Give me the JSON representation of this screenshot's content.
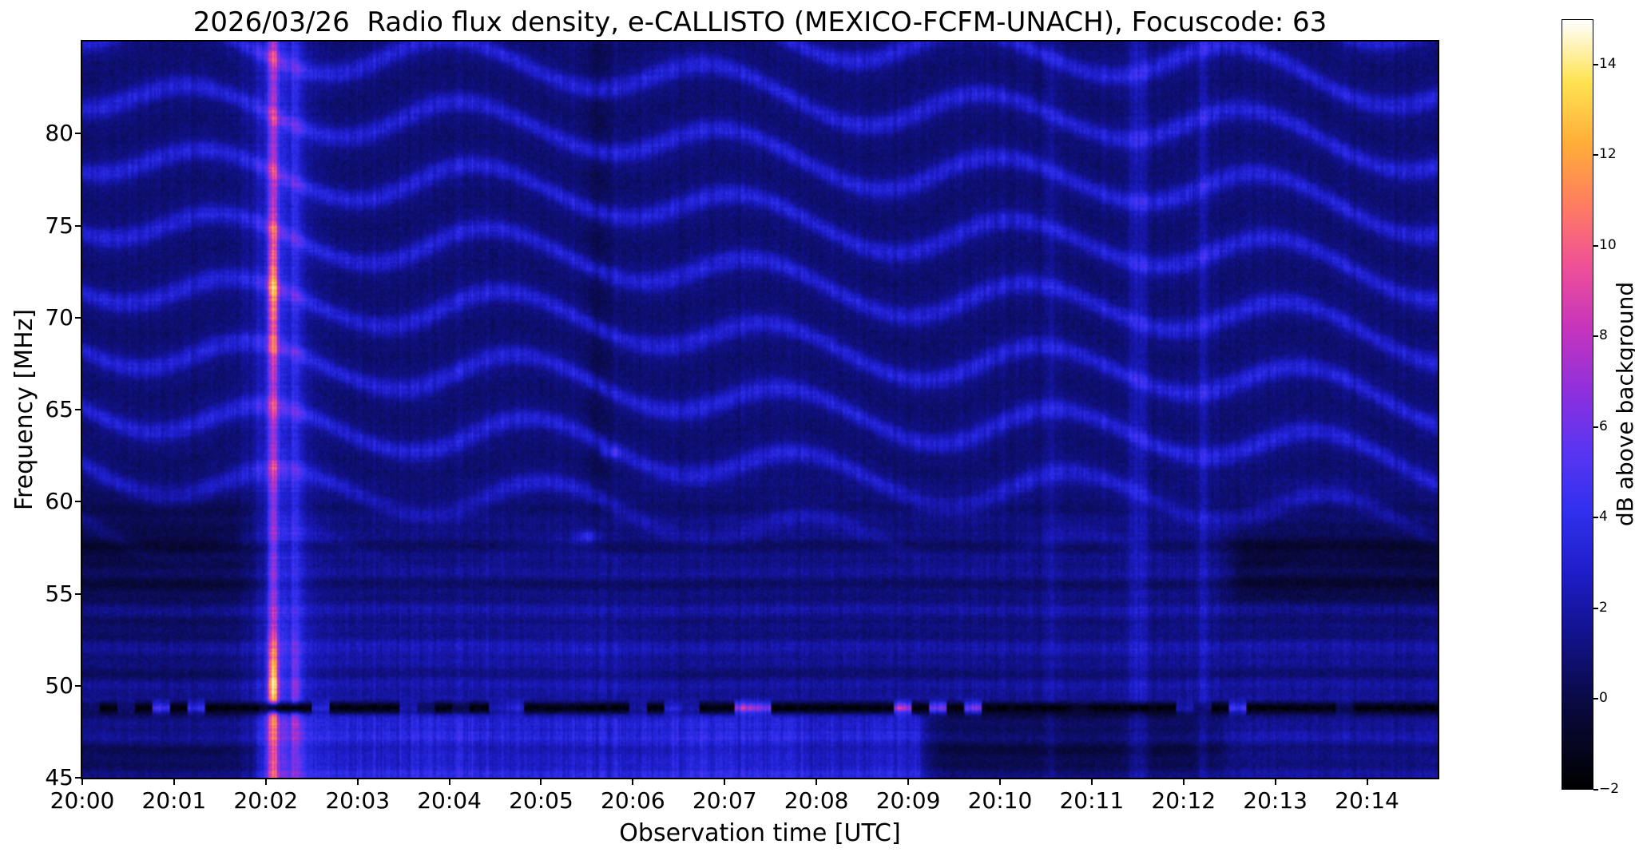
{
  "figure": {
    "title": "2026/03/26  Radio flux density, e-CALLISTO (MEXICO-FCFM-UNACH), Focuscode: 63",
    "xlabel": "Observation time [UTC]",
    "ylabel": "Frequency [MHz]",
    "colorbar_label": "dB above background"
  },
  "chart_data": {
    "type": "heatmap",
    "title": "2026/03/26  Radio flux density, e-CALLISTO (MEXICO-FCFM-UNACH), Focuscode: 63",
    "date": "2026/03/26",
    "instrument": "e-CALLISTO (MEXICO-FCFM-UNACH)",
    "focuscode": 63,
    "xlabel": "Observation time [UTC]",
    "ylabel": "Frequency [MHz]",
    "x_ticks": [
      "20:00",
      "20:01",
      "20:02",
      "20:03",
      "20:04",
      "20:05",
      "20:06",
      "20:07",
      "20:08",
      "20:09",
      "20:10",
      "20:11",
      "20:12",
      "20:13",
      "20:14"
    ],
    "x_range_minutes": [
      0,
      14.77
    ],
    "y_min": 45,
    "y_max": 85,
    "y_ticks": [
      45,
      50,
      55,
      60,
      65,
      70,
      75,
      80
    ],
    "value_unit": "dB above background",
    "value_min": -2,
    "value_max": 15,
    "colorbar_ticks": [
      -2,
      0,
      2,
      4,
      6,
      8,
      10,
      12,
      14
    ],
    "colormap_stops": [
      [
        0.0,
        "#000000"
      ],
      [
        0.055,
        "#050520"
      ],
      [
        0.12,
        "#0a0a48"
      ],
      [
        0.2,
        "#12128c"
      ],
      [
        0.28,
        "#1d1dc8"
      ],
      [
        0.36,
        "#3030ee"
      ],
      [
        0.44,
        "#5a35f2"
      ],
      [
        0.52,
        "#9030dc"
      ],
      [
        0.6,
        "#c634bc"
      ],
      [
        0.68,
        "#ef5097"
      ],
      [
        0.76,
        "#ff7d60"
      ],
      [
        0.84,
        "#ffae38"
      ],
      [
        0.92,
        "#ffe352"
      ],
      [
        1.0,
        "#ffffff"
      ]
    ],
    "features": {
      "type_iii_burst": {
        "time_utc": "20:02.1",
        "time_min": 2.08,
        "core_freq_mhz": 50.2,
        "core_db": 10.5,
        "upper_patch_freq_mhz": 71.5,
        "upper_patch_db": 3.8,
        "halo_db": 2.2,
        "secondary_time_min": 2.32,
        "description": "Bright solar radio burst spanning 45-85 MHz shortly after 20:02, peak ~10-12 dB near 50 MHz with pink patch near 70-75 MHz"
      },
      "rfi_channel": {
        "freq_mhz": 48.8,
        "base_db": -1.6,
        "max_dash_db": 9,
        "description": "Persistent narrowband horizontal RFI line with intermittent bright dashes, brightest cluster near 20:07"
      },
      "enhanced_low_band": {
        "max_freq_mhz": 48.6,
        "t_start_min": 1.95,
        "t_end_min": 9.15,
        "db": 1.9
      },
      "wavy_interference": {
        "freq_range_mhz": [
          56,
          85
        ],
        "spacing_mhz": 3.4,
        "amplitude_db": 2.1,
        "description": "Slanted wavy blue interference fringes over the upper half of the band"
      },
      "bright_columns_min": [
        10.55,
        11.5,
        12.2
      ],
      "dark_columns_min": [
        5.62
      ],
      "dark_left_band": {
        "freq_mhz": [
          52,
          61
        ],
        "t_end_min": 2.3
      },
      "dark_right_patch": {
        "freq_mhz": [
          53,
          59
        ],
        "t_start_min": 12.4
      }
    }
  }
}
